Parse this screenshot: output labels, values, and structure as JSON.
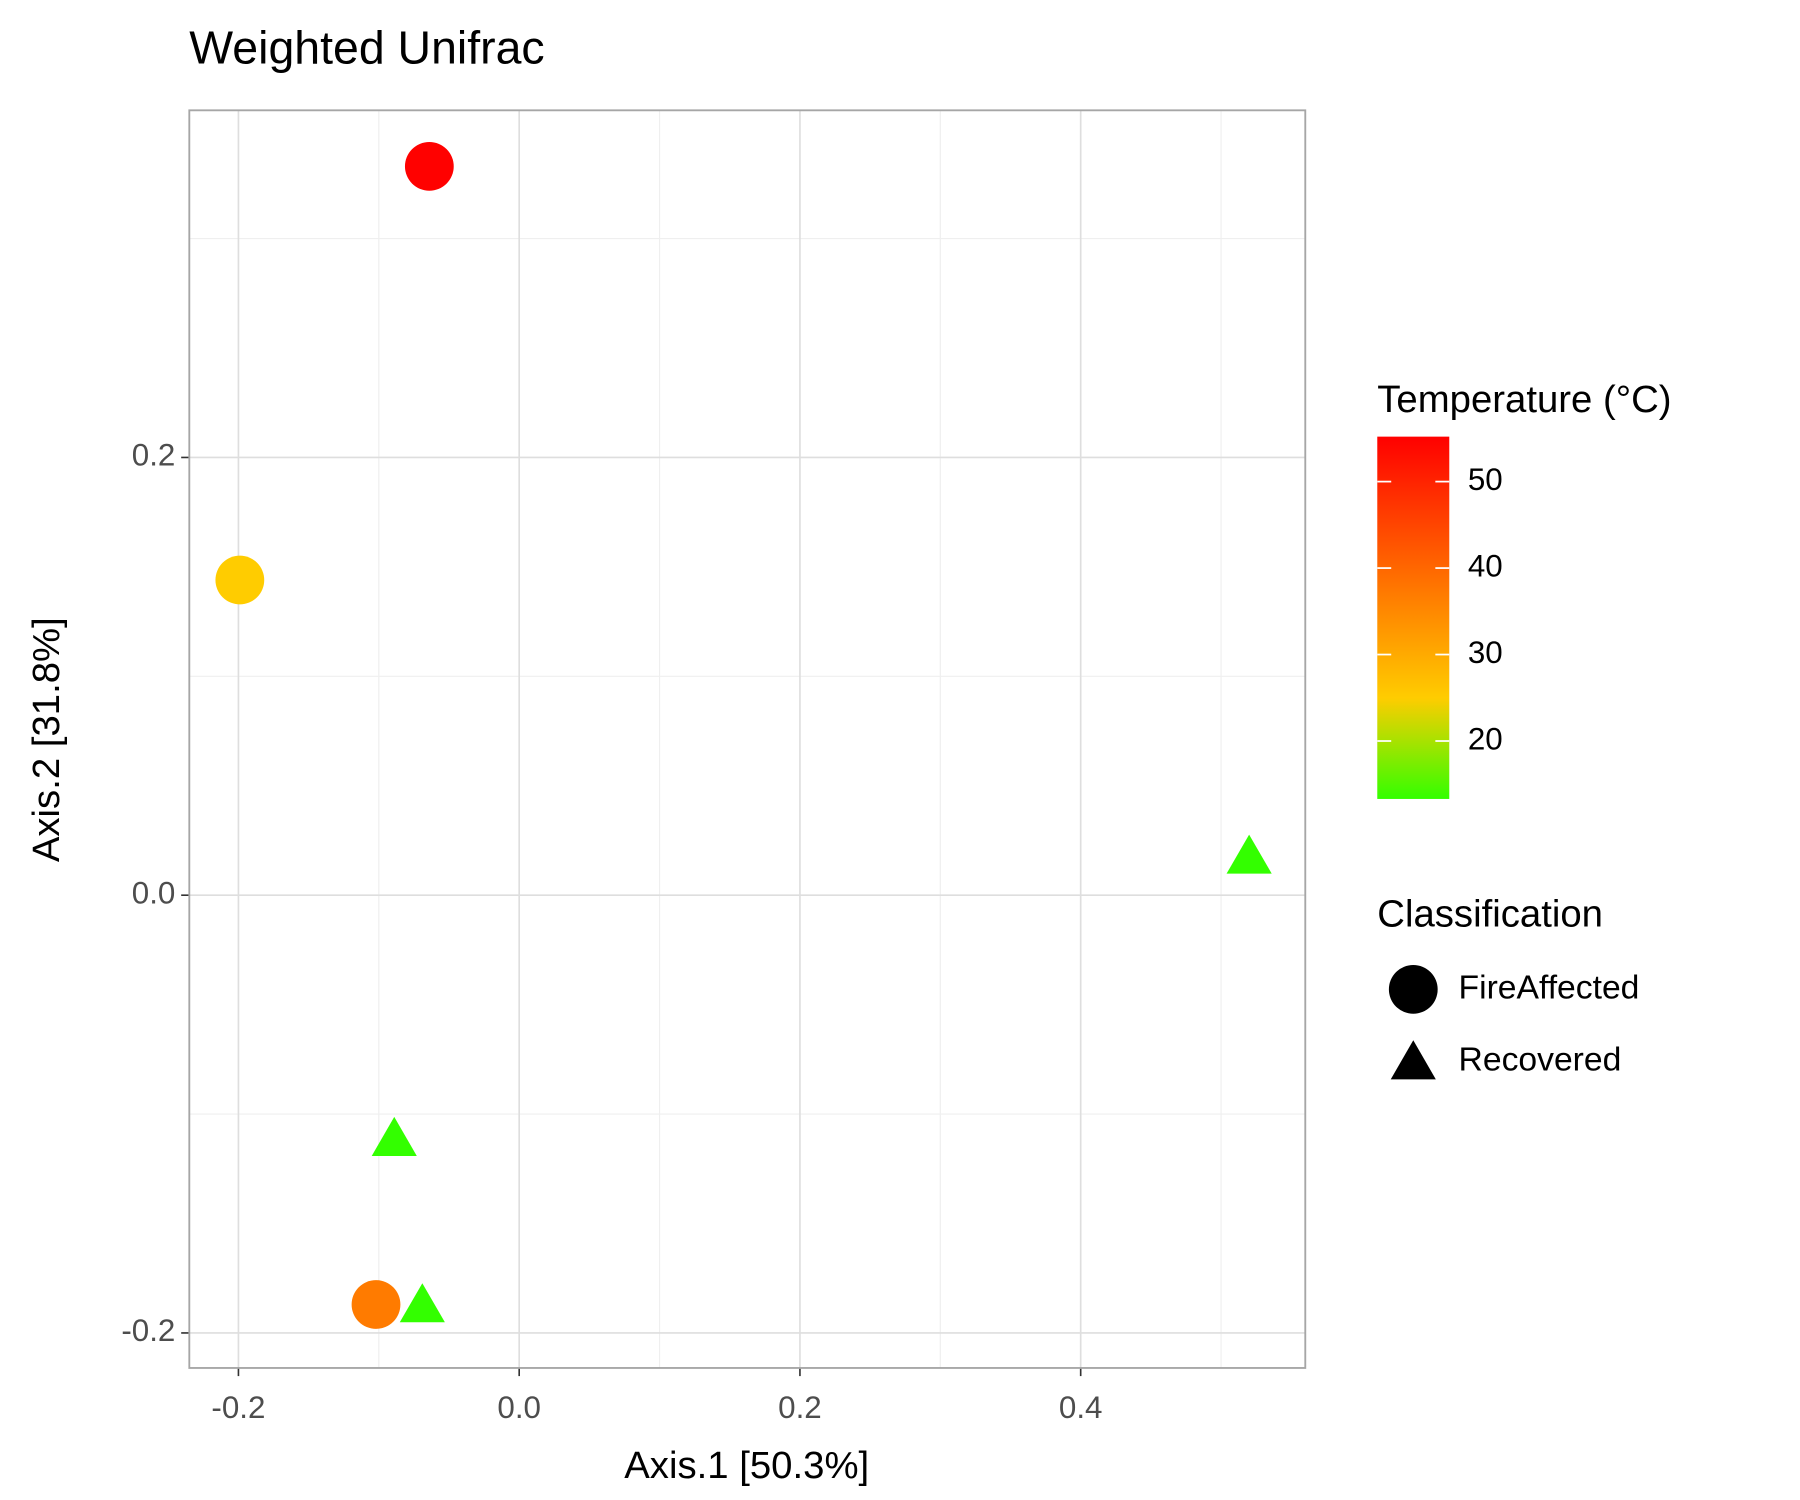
{
  "chart_data": {
    "type": "scatter",
    "title": "Weighted Unifrac",
    "xlabel": "Axis.1   [50.3%]",
    "ylabel": "Axis.2   [31.8%]",
    "xlim": [
      -0.235,
      0.56
    ],
    "ylim": [
      -0.216,
      0.3586
    ],
    "xticks": [
      {
        "value": -0.2,
        "label": "-0.2"
      },
      {
        "value": 0,
        "label": "0.0"
      },
      {
        "value": 0.2,
        "label": "0.2"
      },
      {
        "value": 0.4,
        "label": "0.4"
      }
    ],
    "yticks": [
      {
        "value": -0.2,
        "label": "-0.2"
      },
      {
        "value": 0,
        "label": "0.0"
      },
      {
        "value": 0.2,
        "label": "0.2"
      }
    ],
    "xminorticks": [
      -0.1,
      0.1,
      0.3,
      0.5
    ],
    "yminorticks": [
      -0.1,
      0.1,
      0.3
    ],
    "grid": true,
    "colorbar": {
      "title": "Temperature (°C)",
      "lim": [
        13.3,
        55.2
      ],
      "ticks": [
        20,
        30,
        40,
        50
      ],
      "color_stops": [
        {
          "value": 13.3,
          "color": "#33ff00"
        },
        {
          "value": 25,
          "color": "#ffcc00"
        },
        {
          "value": 55.2,
          "color": "#ff0000"
        }
      ]
    },
    "shape_legend_title": "Classification",
    "series": [
      {
        "name": "FireAffected",
        "marker": "circle",
        "x": [
          -0.064,
          -0.199,
          -0.102
        ],
        "y": [
          0.333,
          0.144,
          -0.187
        ],
        "temperature": [
          55,
          25,
          37
        ]
      },
      {
        "name": "Recovered",
        "marker": "triangle",
        "x": [
          0.52,
          -0.089,
          -0.069
        ],
        "y": [
          0.017,
          -0.112,
          -0.188
        ],
        "temperature": [
          13.3,
          13.3,
          13.3
        ]
      }
    ]
  }
}
